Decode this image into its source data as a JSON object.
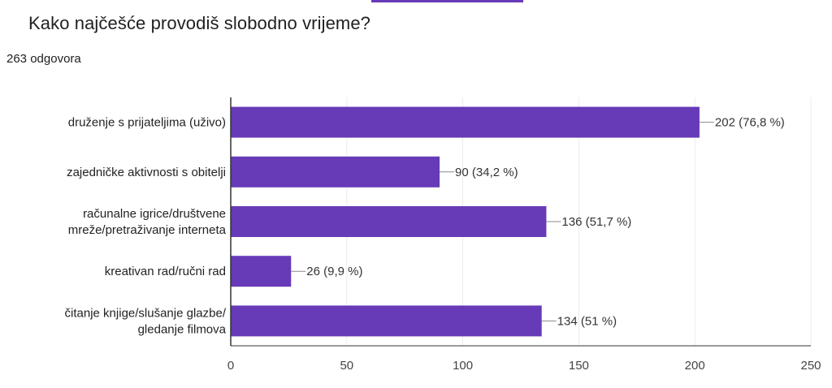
{
  "question": {
    "title": "Kako najčešće provodiš slobodno vrijeme?",
    "response_count": "263 odgovora"
  },
  "colors": {
    "bar": "#673ab7",
    "accent": "#673ab7",
    "grid": "#ebebeb",
    "axis": "#333333"
  },
  "chart_data": {
    "type": "bar",
    "orientation": "horizontal",
    "categories": [
      [
        "druženje s prijateljima (uživo)"
      ],
      [
        "zajedničke aktivnosti s obitelji"
      ],
      [
        "računalne igrice/društvene",
        "mreže/pretraživanje interneta"
      ],
      [
        "kreativan rad/ručni rad"
      ],
      [
        "čitanje knjige/slušanje glazbe/",
        "gledanje filmova"
      ]
    ],
    "values": [
      202,
      90,
      136,
      26,
      134
    ],
    "value_labels": [
      "202 (76,8 %)",
      "90 (34,2 %)",
      "136 (51,7 %)",
      "26 (9,9 %)",
      "134 (51 %)"
    ],
    "xlim": [
      0,
      250
    ],
    "xticks": [
      0,
      50,
      100,
      150,
      200,
      250
    ],
    "grid": true,
    "xlabel": "",
    "ylabel": ""
  }
}
